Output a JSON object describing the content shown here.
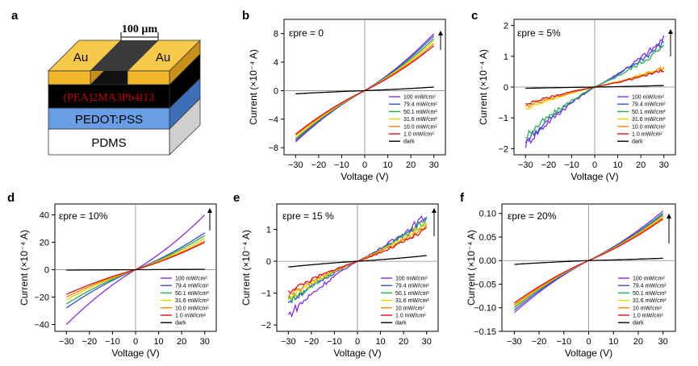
{
  "device": {
    "letter": "a",
    "width_label": "100 µm",
    "au_left": "Au",
    "au_right": "Au",
    "perovskite_label": "(PEA)2MA3Pb4I13",
    "pedot_label": "PEDOT:PSS",
    "pdms_label": "PDMS",
    "colors": {
      "au": "#f2b82c",
      "perovskite": "#000000",
      "perovskite_text": "#cc0000",
      "pedot": "#5b8fd8",
      "pdms": "#ffffff",
      "channel": "#3a3a3a"
    }
  },
  "legend_labels": {
    "b": [
      "100 mW/cm²",
      "79.4 mW/cm²",
      "50.1 mW/cm²",
      "31.6 mW/cm²",
      "10.0 mW/cm²",
      "1.0 mW/cm²",
      "dark"
    ],
    "c": [
      "100 mW/cm²",
      "79.4 mW/cm²",
      "50.1 mW/cm²",
      "31.6 mW/cm²",
      "10.0 mW/cm²",
      "1.0 mW/cm²",
      "dark"
    ],
    "d": [
      "100 mW/cm²",
      "79.4 mW/cm²",
      "50.1 mW/cm²",
      "31.6 mW/cm²",
      "10.0 mW/cm²",
      "1.0 mW/cm²",
      "dark"
    ],
    "e": [
      "100 mW/cm²",
      "79.4 mW/cm²",
      "50.1 mW/cm²",
      "31.6 mW/cm²",
      "10 mW/cm²",
      "1.0 mW/cm²",
      "dark"
    ],
    "f": [
      "100 mW/cm²",
      "79.4 mW/cm²",
      "50.1 mW/cm²",
      "31.6 mW/cm²",
      "10 mW/cm²",
      "1.0 mW/cm²",
      "dark"
    ]
  },
  "series_colors": [
    "#8a2be2",
    "#3a4fd0",
    "#22b14c",
    "#e6d400",
    "#ff8000",
    "#e01010",
    "#000000"
  ],
  "chart_data": [
    {
      "panel": "b",
      "type": "line",
      "annotation": "εpre = 0",
      "xlabel": "Voltage (V)",
      "ylabel": "Current (×10⁻⁴ A)",
      "xlim": [
        -35,
        35
      ],
      "ylim": [
        -9,
        10
      ],
      "xticks": [
        -30,
        -20,
        -10,
        0,
        10,
        20,
        30
      ],
      "yticks": [
        -8,
        -4,
        0,
        4,
        8
      ],
      "x": [
        -30,
        0,
        30
      ],
      "series": [
        {
          "name": "100 mW/cm²",
          "values": [
            -7.2,
            0,
            8.0
          ]
        },
        {
          "name": "79.4 mW/cm²",
          "values": [
            -7.0,
            0,
            7.7
          ]
        },
        {
          "name": "50.1 mW/cm²",
          "values": [
            -6.8,
            0,
            7.3
          ]
        },
        {
          "name": "31.6 mW/cm²",
          "values": [
            -6.6,
            0,
            7.0
          ]
        },
        {
          "name": "10.0 mW/cm²",
          "values": [
            -6.3,
            0,
            6.6
          ]
        },
        {
          "name": "1.0 mW/cm²",
          "values": [
            -6.1,
            0,
            6.3
          ]
        },
        {
          "name": "dark",
          "values": [
            -0.45,
            0,
            0.5
          ]
        }
      ]
    },
    {
      "panel": "c",
      "type": "line",
      "annotation": "εpre = 5%",
      "xlabel": "Voltage (V)",
      "ylabel": "Current (×10⁻⁴ A)",
      "xlim": [
        -35,
        35
      ],
      "ylim": [
        -2.2,
        2.2
      ],
      "xticks": [
        -30,
        -20,
        -10,
        0,
        10,
        20,
        30
      ],
      "yticks": [
        -2,
        -1,
        0,
        1,
        2
      ],
      "x": [
        -30,
        0,
        30
      ],
      "series": [
        {
          "name": "100 mW/cm²",
          "values": [
            -1.85,
            0,
            1.55
          ]
        },
        {
          "name": "79.4 mW/cm²",
          "values": [
            -1.75,
            0,
            1.45
          ]
        },
        {
          "name": "50.1 mW/cm²",
          "values": [
            -1.6,
            0,
            1.3
          ]
        },
        {
          "name": "31.6 mW/cm²",
          "values": [
            -0.7,
            0,
            0.65
          ]
        },
        {
          "name": "10.0 mW/cm²",
          "values": [
            -0.65,
            0,
            0.6
          ]
        },
        {
          "name": "1.0 mW/cm²",
          "values": [
            -0.55,
            0,
            0.55
          ]
        },
        {
          "name": "dark",
          "values": [
            -0.04,
            0,
            0.05
          ]
        }
      ]
    },
    {
      "panel": "d",
      "type": "line",
      "annotation": "εpre = 10%",
      "xlabel": "Voltage (V)",
      "ylabel": "Current (×10⁻⁴ A)",
      "xlim": [
        -35,
        35
      ],
      "ylim": [
        -45,
        48
      ],
      "xticks": [
        -30,
        -20,
        -10,
        0,
        10,
        20,
        30
      ],
      "yticks": [
        -40,
        -20,
        0,
        20,
        40
      ],
      "x": [
        -30,
        0,
        30
      ],
      "series": [
        {
          "name": "100 mW/cm²",
          "values": [
            -40,
            0,
            40
          ]
        },
        {
          "name": "79.4 mW/cm²",
          "values": [
            -28,
            0,
            27
          ]
        },
        {
          "name": "50.1 mW/cm²",
          "values": [
            -25,
            0,
            25
          ]
        },
        {
          "name": "31.6 mW/cm²",
          "values": [
            -22,
            0,
            23
          ]
        },
        {
          "name": "10.0 mW/cm²",
          "values": [
            -20,
            0,
            21
          ]
        },
        {
          "name": "1.0 mW/cm²",
          "values": [
            -18,
            0,
            20
          ]
        },
        {
          "name": "dark",
          "values": [
            -0.3,
            0,
            0.3
          ]
        }
      ]
    },
    {
      "panel": "e",
      "type": "line",
      "annotation": "εpre = 15 %",
      "xlabel": "Voltage (V)",
      "ylabel": "Current (×10⁻⁴ A)",
      "xlim": [
        -35,
        35
      ],
      "ylim": [
        -2.2,
        1.8
      ],
      "xticks": [
        -30,
        -20,
        -10,
        0,
        10,
        20,
        30
      ],
      "yticks": [
        -2,
        -1,
        0,
        1
      ],
      "x": [
        -30,
        0,
        30
      ],
      "series": [
        {
          "name": "100 mW/cm²",
          "values": [
            -1.7,
            0,
            1.45
          ]
        },
        {
          "name": "79.4 mW/cm²",
          "values": [
            -1.3,
            0,
            1.35
          ]
        },
        {
          "name": "50.1 mW/cm²",
          "values": [
            -1.25,
            0,
            1.3
          ]
        },
        {
          "name": "31.6 mW/cm²",
          "values": [
            -1.15,
            0,
            1.2
          ]
        },
        {
          "name": "10 mW/cm²",
          "values": [
            -1.05,
            0,
            1.1
          ]
        },
        {
          "name": "1.0 mW/cm²",
          "values": [
            -0.95,
            0,
            1.0
          ]
        },
        {
          "name": "dark",
          "values": [
            -0.18,
            0,
            0.18
          ]
        }
      ]
    },
    {
      "panel": "f",
      "type": "line",
      "annotation": "εpre = 20%",
      "xlabel": "Voltage (V)",
      "ylabel": "Current (×10⁻⁴ A)",
      "xlim": [
        -35,
        35
      ],
      "ylim": [
        -0.15,
        0.12
      ],
      "xticks": [
        -30,
        -20,
        -10,
        0,
        10,
        20,
        30
      ],
      "yticks": [
        -0.15,
        -0.1,
        -0.05,
        0.0,
        0.05,
        0.1
      ],
      "x": [
        -30,
        0,
        30
      ],
      "series": [
        {
          "name": "100 mW/cm²",
          "values": [
            -0.11,
            0,
            0.105
          ]
        },
        {
          "name": "79.4 mW/cm²",
          "values": [
            -0.105,
            0,
            0.1
          ]
        },
        {
          "name": "50.1 mW/cm²",
          "values": [
            -0.1,
            0,
            0.097
          ]
        },
        {
          "name": "31.6 mW/cm²",
          "values": [
            -0.097,
            0,
            0.094
          ]
        },
        {
          "name": "10 mW/cm²",
          "values": [
            -0.094,
            0,
            0.091
          ]
        },
        {
          "name": "1.0 mW/cm²",
          "values": [
            -0.09,
            0,
            0.088
          ]
        },
        {
          "name": "dark",
          "values": [
            -0.008,
            0,
            0.005
          ]
        }
      ]
    }
  ]
}
